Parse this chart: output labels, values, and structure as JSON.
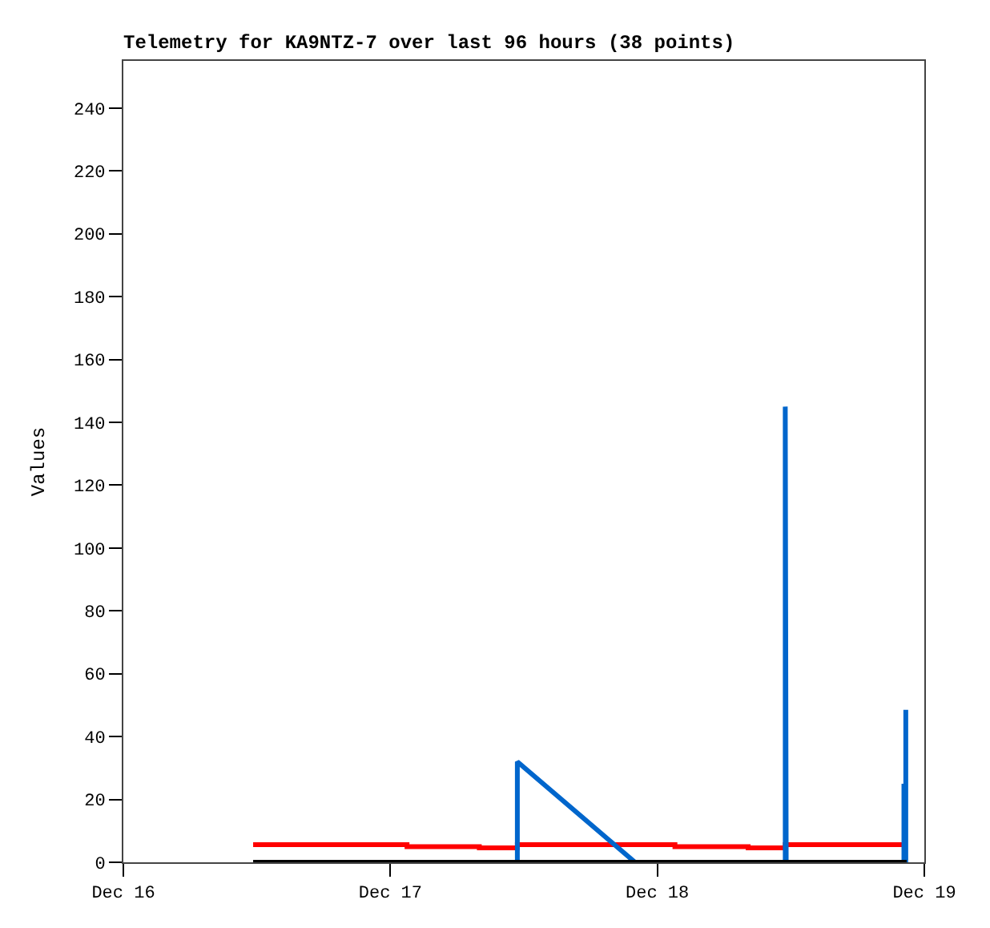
{
  "chart_data": {
    "type": "line",
    "title": "Telemetry for KA9NTZ-7 over last 96 hours (38 points)",
    "ylabel": "Values",
    "series": [
      {
        "type": "step",
        "color": "#ff0000",
        "x": [
          "--12-16T11:40",
          "--12-17T01:30",
          "--12-17T08:00",
          "--12-17T11:25",
          "--12-18T01:35",
          "--12-18T08:10",
          "--12-18T11:30",
          "--12-18T22:25"
        ],
        "values": [
          5.6,
          5.0,
          4.6,
          5.6,
          5.0,
          4.6,
          5.6,
          5.6
        ]
      },
      {
        "color": "#0066cc",
        "x": [
          "--12-17T11:25",
          "--12-17T11:25",
          "--12-17T22:00",
          "--12-18T11:30",
          "--12-18T11:30",
          "--12-18T11:35",
          "--12-18T22:10",
          "--12-18T22:10",
          "--12-18T22:20",
          "--12-18T22:20"
        ],
        "values": [
          0,
          32,
          0,
          0,
          145,
          0,
          0,
          25,
          0,
          48.5
        ]
      },
      {
        "color": "#000000",
        "x": [
          "--12-16T11:40",
          "--12-18T22:25"
        ],
        "values": [
          0,
          0
        ]
      }
    ],
    "xlim": [
      "--12-16T00:00",
      "--12-19T00:00"
    ],
    "xticks": [
      {
        "value": "--12-16T00:00",
        "label": "Dec 16"
      },
      {
        "value": "--12-17T00:00",
        "label": "Dec 17"
      },
      {
        "value": "--12-18T00:00",
        "label": "Dec 18"
      },
      {
        "value": "--12-19T00:00",
        "label": "Dec 19"
      }
    ],
    "ylim": [
      0,
      255
    ],
    "yticks": [
      0,
      20,
      40,
      60,
      80,
      100,
      120,
      140,
      160,
      180,
      200,
      220,
      240
    ],
    "marker": "none"
  }
}
